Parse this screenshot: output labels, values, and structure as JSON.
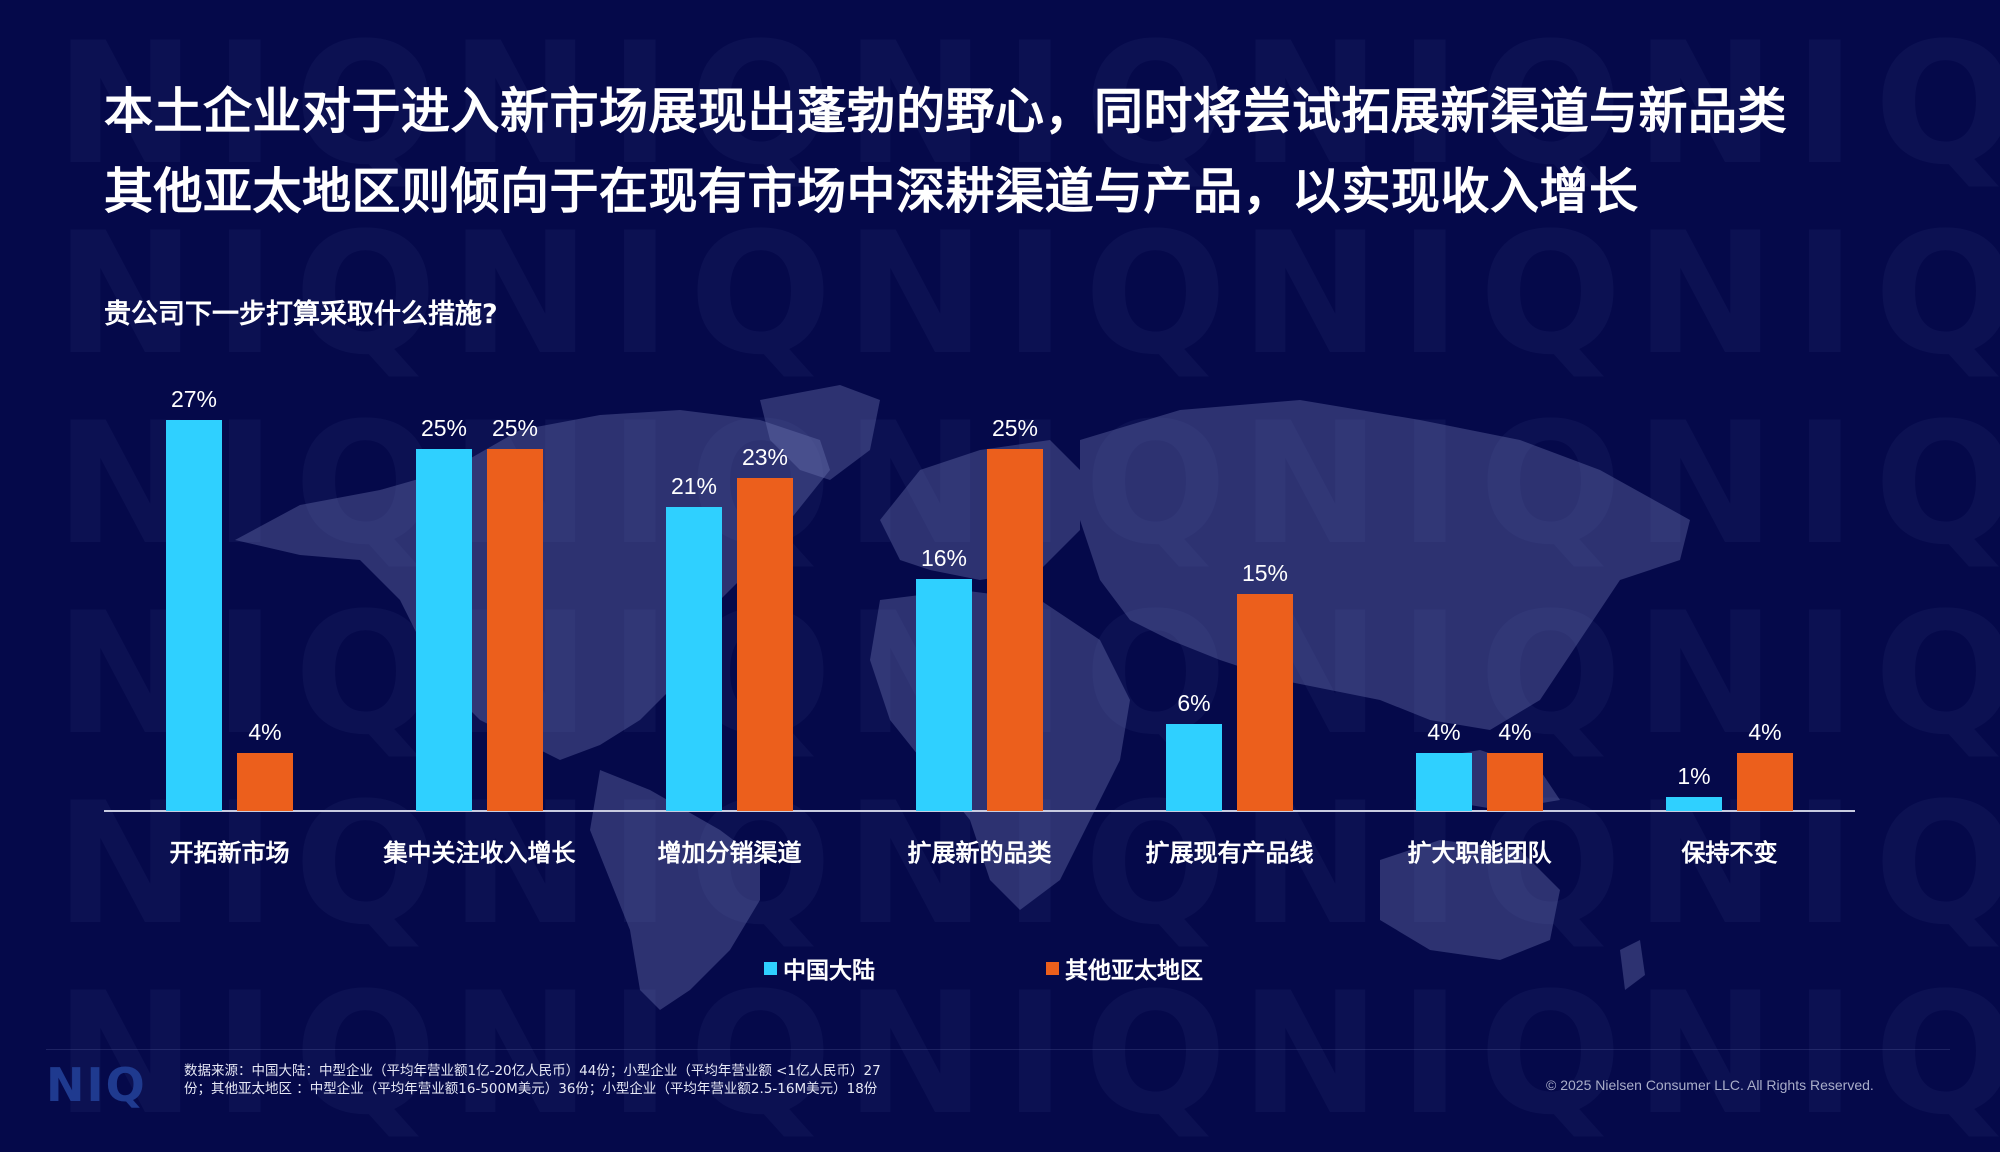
{
  "slide": {
    "title_lines": [
      "本土企业对于进入新市场展现出蓬勃的野心，同时将尝试拓展新渠道与新品类",
      "其他亚太地区则倾向于在现有市场中深耕渠道与产品，以实现收入增长"
    ],
    "question": "贵公司下一步打算采取什么措施?",
    "watermark_text": "NIQ",
    "logo": "NIQ",
    "source_note": "数据来源：中国大陆：中型企业（平均年营业额1亿-20亿人民币）44份；小型企业（平均年营业额 <1亿人民币）27份；其他亚太地区 ：中型企业（平均年营业额16-500M美元）36份；小型企业（平均年营业额2.5-16M美元）18份",
    "copyright": "© 2025 Nielsen Consumer LLC. All Rights Reserved.",
    "colors": {
      "background": "#05094a",
      "china": "#2fd0ff",
      "other_apac": "#ec5f1c"
    }
  },
  "chart_data": {
    "type": "bar",
    "title": "贵公司下一步打算采取什么措施?",
    "xlabel": "",
    "ylabel": "",
    "ylim": [
      0,
      30
    ],
    "grid": false,
    "legend_position": "bottom",
    "categories": [
      "开拓新市场",
      "集中关注收入增长",
      "增加分销渠道",
      "扩展新的品类",
      "扩展现有产品线",
      "扩大职能团队",
      "保持不变"
    ],
    "series": [
      {
        "name": "中国大陆",
        "color": "#2fd0ff",
        "values": [
          27,
          25,
          21,
          16,
          6,
          4,
          1
        ]
      },
      {
        "name": "其他亚太地区",
        "color": "#ec5f1c",
        "values": [
          4,
          25,
          23,
          25,
          15,
          4,
          4
        ]
      }
    ],
    "value_labels": {
      "china": [
        "27%",
        "25%",
        "21%",
        "16%",
        "6%",
        "4%",
        "1%"
      ],
      "other_apac": [
        "4%",
        "25%",
        "23%",
        "25%",
        "15%",
        "4%",
        "4%"
      ]
    }
  }
}
